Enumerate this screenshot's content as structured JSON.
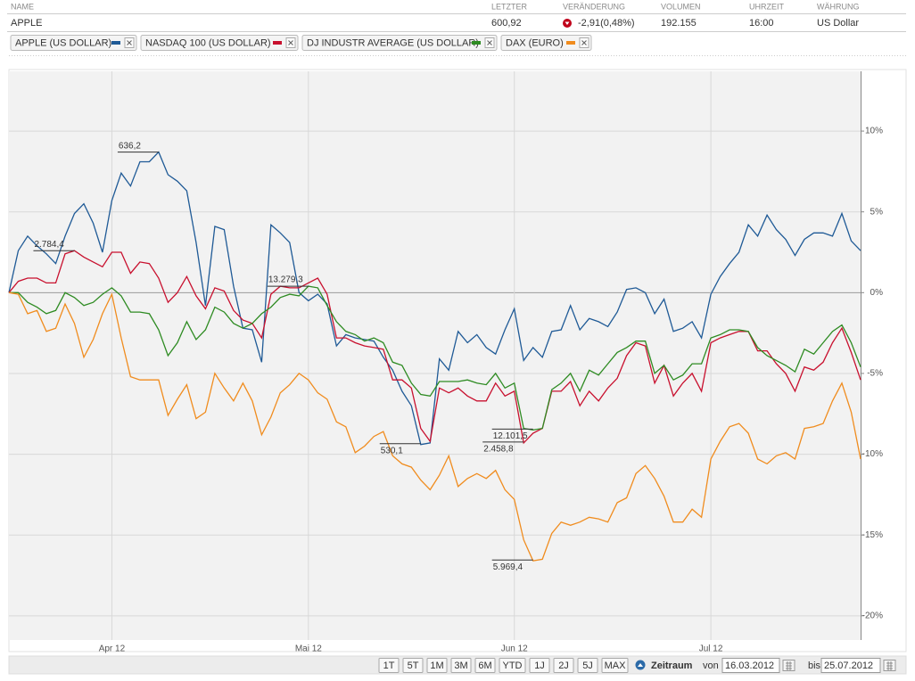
{
  "header": {
    "columns": [
      "NAME",
      "LETZTER",
      "VERÄNDERUNG",
      "VOLUMEN",
      "UHRZEIT",
      "WÄHRUNG"
    ],
    "row": [
      "APPLE",
      "600,92",
      "-2,91(0,48%)",
      "192.155",
      "16:00",
      "US Dollar"
    ]
  },
  "chart_data": {
    "type": "line",
    "categories": [
      null,
      null,
      null,
      null,
      null,
      null,
      null,
      null,
      null,
      null,
      null,
      "Apr 12",
      null,
      null,
      null,
      null,
      null,
      null,
      null,
      null,
      null,
      null,
      null,
      null,
      null,
      null,
      null,
      null,
      null,
      null,
      null,
      null,
      "Mai 12",
      null,
      null,
      null,
      null,
      null,
      null,
      null,
      null,
      null,
      null,
      null,
      null,
      null,
      null,
      null,
      null,
      null,
      null,
      null,
      null,
      null,
      "Jun 12",
      null,
      null,
      null,
      null,
      null,
      null,
      null,
      null,
      null,
      null,
      null,
      null,
      null,
      null,
      null,
      null,
      null,
      null,
      null,
      null,
      "Jul 12",
      null,
      null,
      null,
      null,
      null,
      null,
      null,
      null,
      null,
      null,
      null,
      null,
      null,
      null,
      null,
      null
    ],
    "series": [
      {
        "name": "APPLE (US DOLLAR)",
        "color": "#1f5a96",
        "max_label": "636,2",
        "min_label": "530,1",
        "values": [
          0,
          2.6,
          3.5,
          2.9,
          2.4,
          1.8,
          3.5,
          4.9,
          5.5,
          4.3,
          2.5,
          5.7,
          7.4,
          6.6,
          8.1,
          8.1,
          8.7,
          7.3,
          6.9,
          6.3,
          3.1,
          -0.8,
          4.1,
          3.9,
          0.4,
          -2.2,
          -2.3,
          -4.3,
          4.2,
          3.7,
          3.1,
          0,
          -0.5,
          -0.1,
          -0.7,
          -3.3,
          -2.6,
          -2.8,
          -2.9,
          -3.0,
          -4.0,
          -4.8,
          -6.1,
          -7.0,
          -9.4,
          -9.3,
          -4.1,
          -4.8,
          -2.4,
          -3.1,
          -2.6,
          -3.4,
          -3.8,
          -2.3,
          -1.0,
          -4.2,
          -3.4,
          -4.0,
          -2.4,
          -2.3,
          -0.8,
          -2.3,
          -1.6,
          -1.8,
          -2.1,
          -1.2,
          0.2,
          0.3,
          0,
          -1.3,
          -0.4,
          -2.4,
          -2.2,
          -1.8,
          -2.8,
          -0.1,
          1.0,
          1.8,
          2.5,
          4.2,
          3.5,
          4.8,
          3.9,
          3.3,
          2.3,
          3.3,
          3.7,
          3.7,
          3.5,
          4.9,
          3.2,
          2.6
        ]
      },
      {
        "name": "NASDAQ 100 (US DOLLAR)",
        "color": "#c8102e",
        "max_label": "2.784,4",
        "min_label": "2.458,8",
        "values": [
          0,
          0.7,
          0.9,
          0.9,
          0.6,
          0.6,
          2.4,
          2.6,
          2.2,
          1.9,
          1.6,
          2.5,
          2.5,
          1.2,
          1.9,
          1.8,
          0.9,
          -0.6,
          0,
          1.0,
          -0.2,
          -1.0,
          0.3,
          0.1,
          -1.1,
          -1.7,
          -1.9,
          -2.8,
          -0.1,
          0.4,
          0.3,
          0.3,
          0.6,
          0.9,
          -0.1,
          -2.8,
          -2.8,
          -3.1,
          -3.3,
          -3.4,
          -3.5,
          -5.4,
          -5.4,
          -5.9,
          -8.4,
          -9.2,
          -5.9,
          -6.2,
          -5.9,
          -6.4,
          -6.7,
          -6.7,
          -5.6,
          -6.4,
          -6.1,
          -9.3,
          -8.7,
          -8.4,
          -6.1,
          -6.1,
          -5.5,
          -7.0,
          -6.1,
          -6.7,
          -5.9,
          -5.3,
          -3.9,
          -3.1,
          -3.3,
          -5.6,
          -4.5,
          -6.4,
          -5.6,
          -5.0,
          -6.1,
          -3.1,
          -2.8,
          -2.6,
          -2.4,
          -2.4,
          -3.6,
          -3.6,
          -4.4,
          -5.0,
          -6.1,
          -4.6,
          -4.8,
          -4.3,
          -3.1,
          -2.2,
          -3.7,
          -5.4
        ]
      },
      {
        "name": "DJ INDUSTR AVERAGE (US DOLLAR)",
        "color": "#2e8b22",
        "max_label": "13.279,3",
        "min_label": "12.101,5",
        "values": [
          0,
          0,
          -0.6,
          -0.9,
          -1.3,
          -1.1,
          0,
          -0.3,
          -0.8,
          -0.6,
          -0.1,
          0.3,
          -0.2,
          -1.2,
          -1.2,
          -1.3,
          -2.3,
          -3.9,
          -3.1,
          -1.8,
          -2.9,
          -2.3,
          -0.9,
          -1.2,
          -1.9,
          -2.2,
          -1.9,
          -1.3,
          -0.9,
          -0.3,
          -0.1,
          -0.2,
          0.4,
          0.3,
          -0.8,
          -1.8,
          -2.4,
          -2.6,
          -3.0,
          -2.8,
          -3.1,
          -4.3,
          -4.5,
          -5.6,
          -6.3,
          -6.4,
          -5.5,
          -5.5,
          -5.5,
          -5.4,
          -5.6,
          -5.7,
          -5.0,
          -5.9,
          -5.6,
          -8.4,
          -8.5,
          -8.4,
          -6.0,
          -5.6,
          -5.0,
          -6.1,
          -4.8,
          -5.1,
          -4.4,
          -3.7,
          -3.4,
          -3.0,
          -3.0,
          -5.0,
          -4.5,
          -5.4,
          -5.1,
          -4.4,
          -4.4,
          -2.8,
          -2.6,
          -2.3,
          -2.3,
          -2.4,
          -3.4,
          -3.9,
          -4.2,
          -4.5,
          -4.9,
          -3.5,
          -3.8,
          -3.1,
          -2.4,
          -2.0,
          -3.1,
          -4.6
        ]
      },
      {
        "name": "DAX (EURO)",
        "color": "#f08c1e",
        "min_label": "5.969,4",
        "values": [
          0,
          -0.1,
          -1.3,
          -1.1,
          -2.4,
          -2.2,
          -0.7,
          -1.9,
          -4.0,
          -2.9,
          -1.3,
          -0.1,
          -2.8,
          -5.2,
          -5.4,
          -5.4,
          -5.4,
          -7.6,
          -6.6,
          -5.7,
          -7.8,
          -7.4,
          -5.0,
          -5.9,
          -6.7,
          -5.6,
          -6.7,
          -8.8,
          -7.7,
          -6.2,
          -5.7,
          -5.0,
          -5.4,
          -6.2,
          -6.6,
          -8.0,
          -8.3,
          -9.9,
          -9.5,
          -8.9,
          -8.6,
          -10.1,
          -10.6,
          -10.8,
          -11.6,
          -12.2,
          -11.3,
          -10.1,
          -12.0,
          -11.5,
          -11.2,
          -11.5,
          -11.0,
          -12.2,
          -12.8,
          -15.3,
          -16.6,
          -16.5,
          -14.9,
          -14.2,
          -14.4,
          -14.2,
          -13.9,
          -14.0,
          -14.2,
          -13.0,
          -12.7,
          -11.2,
          -10.7,
          -11.5,
          -12.6,
          -14.2,
          -14.2,
          -13.4,
          -13.9,
          -10.3,
          -9.2,
          -8.3,
          -8.1,
          -8.7,
          -10.3,
          -10.6,
          -10.1,
          -9.9,
          -10.3,
          -8.4,
          -8.3,
          -8.1,
          -6.7,
          -5.6,
          -7.4,
          -10.3
        ]
      }
    ],
    "ylim": [
      -21.5,
      13.7
    ],
    "yticks": [
      {
        "value": 10,
        "label": "10%"
      },
      {
        "value": 5,
        "label": "5%"
      },
      {
        "value": 0,
        "label": "0%"
      },
      {
        "value": -5,
        "label": "-5%"
      },
      {
        "value": -10,
        "label": "-10%"
      },
      {
        "value": -15,
        "label": "-15%"
      },
      {
        "value": -20,
        "label": "-20%"
      }
    ],
    "grid": true
  },
  "toolbar": {
    "buttons": [
      "1T",
      "5T",
      "1M",
      "3M",
      "6M",
      "YTD",
      "1J",
      "2J",
      "5J",
      "MAX"
    ],
    "period_label": "Zeitraum",
    "from_label": "von",
    "from": "16.03.2012",
    "to_label": "bis",
    "to": "25.07.2012"
  }
}
